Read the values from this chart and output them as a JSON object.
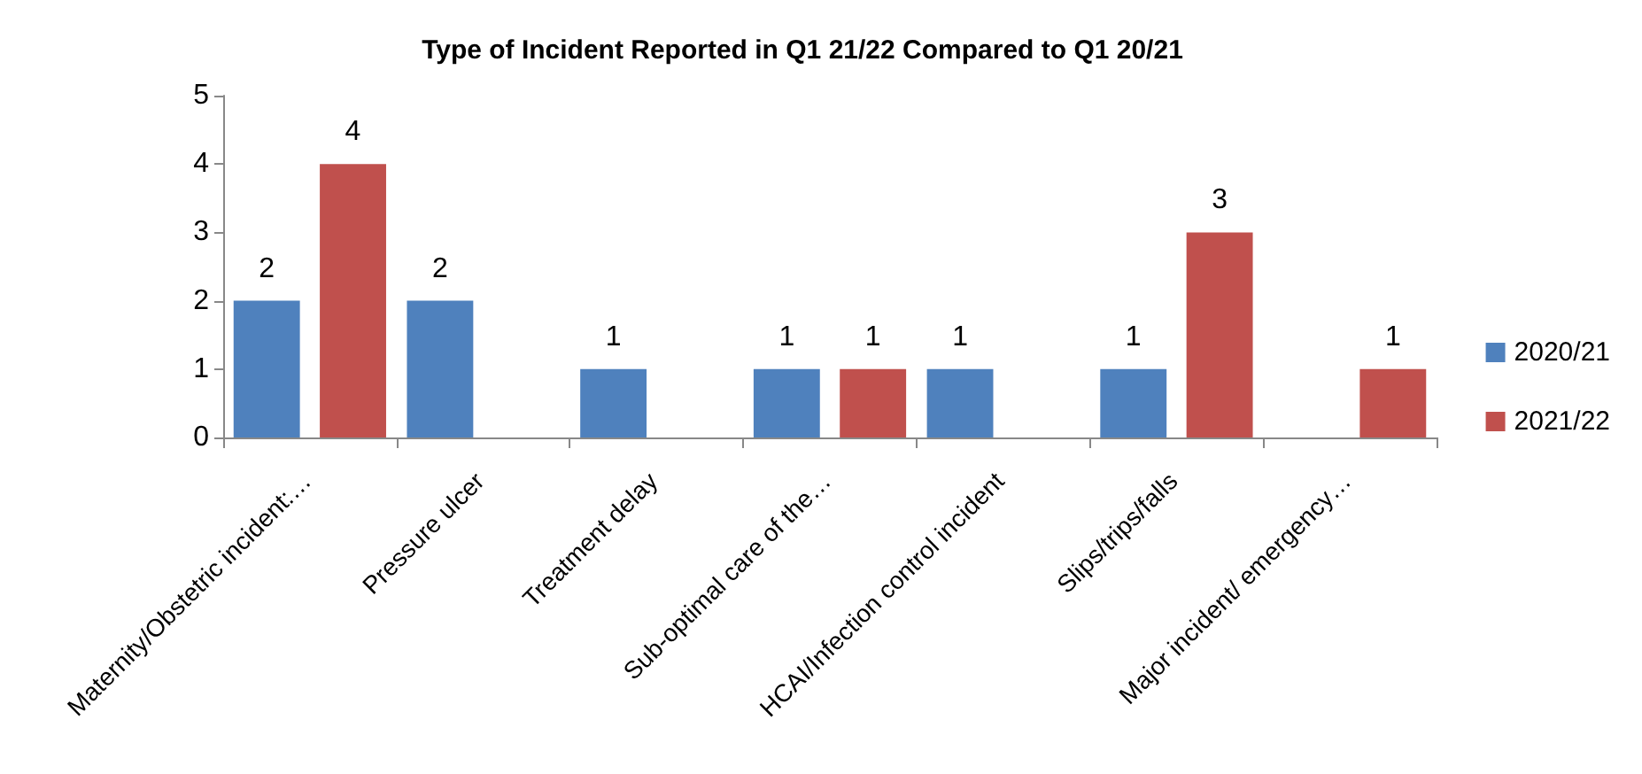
{
  "chart_data": {
    "type": "bar",
    "title": "Type of Incident Reported in Q1 21/22 Compared to Q1 20/21",
    "categories": [
      "Maternity/Obstetric incident:…",
      "Pressure ulcer",
      "Treatment delay",
      "Sub-optimal care of the…",
      "HCAI/Infection control incident",
      "Slips/trips/falls",
      "Major incident/ emergency…"
    ],
    "series": [
      {
        "name": "2020/21",
        "color": "#4f81bd",
        "values": [
          2,
          2,
          1,
          1,
          1,
          1,
          null
        ]
      },
      {
        "name": "2021/22",
        "color": "#c0504d",
        "values": [
          4,
          null,
          null,
          1,
          null,
          3,
          1
        ]
      }
    ],
    "ylim": [
      0,
      5
    ],
    "yticks": [
      0,
      1,
      2,
      3,
      4,
      5
    ],
    "grid": false,
    "legend": "right",
    "data_labels": true
  }
}
